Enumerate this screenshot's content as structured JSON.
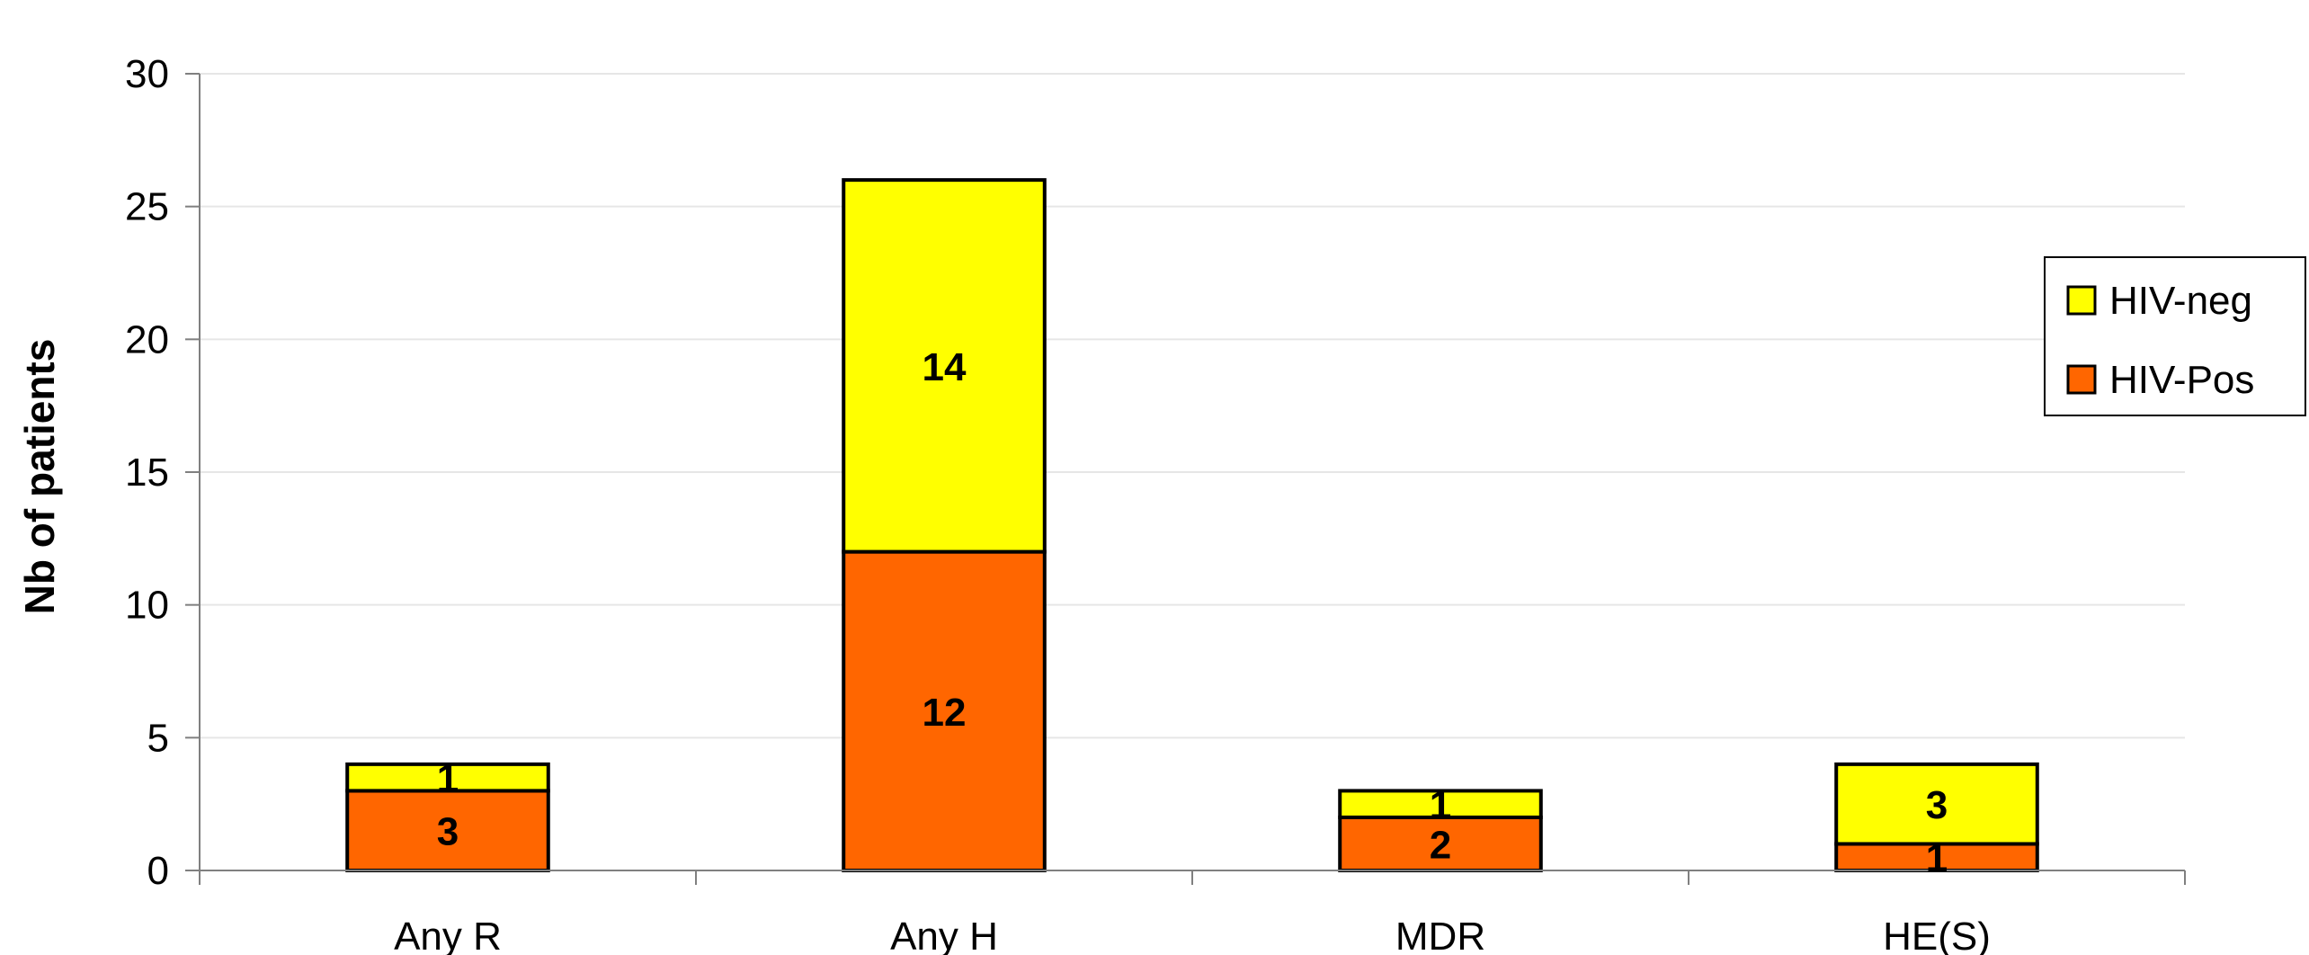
{
  "chart_data": {
    "type": "bar",
    "stacked": true,
    "categories": [
      "Any R",
      "Any H",
      "MDR",
      "HE(S)"
    ],
    "series": [
      {
        "name": "HIV-Pos",
        "values": [
          3,
          12,
          2,
          1
        ],
        "color": "#ff6600"
      },
      {
        "name": "HIV-neg",
        "values": [
          1,
          14,
          1,
          3
        ],
        "color": "#ffff00"
      }
    ],
    "ylabel": "Nb of patients",
    "xlabel": "",
    "ylim": [
      0,
      30
    ],
    "yticks": [
      0,
      5,
      10,
      15,
      20,
      25,
      30
    ],
    "grid": true,
    "legend_position": "right",
    "legend_order": [
      "HIV-neg",
      "HIV-Pos"
    ],
    "data_labels": true
  }
}
